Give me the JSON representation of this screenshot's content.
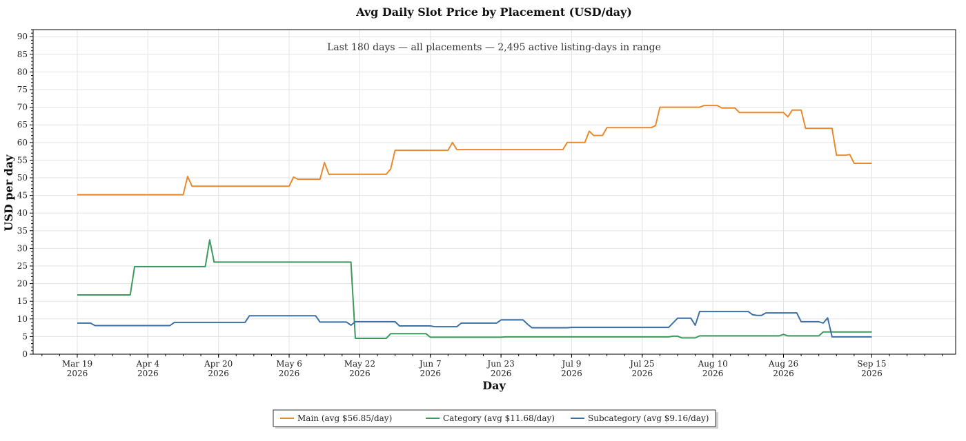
{
  "chart_data": {
    "type": "line",
    "title": "Avg Daily Slot Price by Placement (USD/day)",
    "annotation": "Last 180 days — all placements — 2,495 active listing-days in range",
    "xlabel": "Day",
    "ylabel": "USD per day",
    "x_range": [
      "2026-03-09",
      "2026-10-04"
    ],
    "ylim": [
      0,
      92
    ],
    "y_ticks": [
      0,
      5,
      10,
      15,
      20,
      25,
      30,
      35,
      40,
      45,
      50,
      55,
      60,
      65,
      70,
      75,
      80,
      85,
      90
    ],
    "x_ticks": [
      {
        "date": "2026-03-19",
        "label": [
          "Mar 19",
          "2026"
        ]
      },
      {
        "date": "2026-04-04",
        "label": [
          "Apr 4",
          "2026"
        ]
      },
      {
        "date": "2026-04-20",
        "label": [
          "Apr 20",
          "2026"
        ]
      },
      {
        "date": "2026-05-06",
        "label": [
          "May 6",
          "2026"
        ]
      },
      {
        "date": "2026-05-22",
        "label": [
          "May 22",
          "2026"
        ]
      },
      {
        "date": "2026-06-07",
        "label": [
          "Jun 7",
          "2026"
        ]
      },
      {
        "date": "2026-06-23",
        "label": [
          "Jun 23",
          "2026"
        ]
      },
      {
        "date": "2026-07-09",
        "label": [
          "Jul 9",
          "2026"
        ]
      },
      {
        "date": "2026-07-25",
        "label": [
          "Jul 25",
          "2026"
        ]
      },
      {
        "date": "2026-08-10",
        "label": [
          "Aug 10",
          "2026"
        ]
      },
      {
        "date": "2026-08-26",
        "label": [
          "Aug 26",
          "2026"
        ]
      },
      {
        "date": "2026-09-15",
        "label": [
          "Sep 15",
          "2026"
        ]
      }
    ],
    "grid": true,
    "legend_position": "bottom-center",
    "series": [
      {
        "name": "Main (avg $56.85/day)",
        "color": "#e8892b",
        "points": [
          [
            "2026-03-19",
            45.2
          ],
          [
            "2026-04-12",
            45.2
          ],
          [
            "2026-04-13",
            50.4
          ],
          [
            "2026-04-14",
            47.6
          ],
          [
            "2026-05-06",
            47.6
          ],
          [
            "2026-05-07",
            50.2
          ],
          [
            "2026-05-08",
            49.6
          ],
          [
            "2026-05-13",
            49.6
          ],
          [
            "2026-05-14",
            54.3
          ],
          [
            "2026-05-15",
            51.0
          ],
          [
            "2026-05-28",
            51.0
          ],
          [
            "2026-05-29",
            52.5
          ],
          [
            "2026-05-30",
            57.8
          ],
          [
            "2026-06-11",
            57.8
          ],
          [
            "2026-06-12",
            60.0
          ],
          [
            "2026-06-13",
            58.0
          ],
          [
            "2026-07-07",
            58.0
          ],
          [
            "2026-07-08",
            60.0
          ],
          [
            "2026-07-12",
            60.0
          ],
          [
            "2026-07-13",
            63.2
          ],
          [
            "2026-07-14",
            62.0
          ],
          [
            "2026-07-16",
            62.0
          ],
          [
            "2026-07-17",
            64.2
          ],
          [
            "2026-07-27",
            64.2
          ],
          [
            "2026-07-28",
            64.8
          ],
          [
            "2026-07-29",
            70.0
          ],
          [
            "2026-08-07",
            70.0
          ],
          [
            "2026-08-08",
            70.5
          ],
          [
            "2026-08-11",
            70.5
          ],
          [
            "2026-08-12",
            69.8
          ],
          [
            "2026-08-15",
            69.8
          ],
          [
            "2026-08-16",
            68.5
          ],
          [
            "2026-08-26",
            68.5
          ],
          [
            "2026-08-27",
            67.3
          ],
          [
            "2026-08-28",
            69.2
          ],
          [
            "2026-08-30",
            69.2
          ],
          [
            "2026-08-31",
            64.0
          ],
          [
            "2026-09-06",
            64.0
          ],
          [
            "2026-09-07",
            56.4
          ],
          [
            "2026-09-09",
            56.4
          ],
          [
            "2026-09-10",
            56.6
          ],
          [
            "2026-09-11",
            54.1
          ],
          [
            "2026-09-15",
            54.1
          ]
        ]
      },
      {
        "name": "Category (avg $11.68/day)",
        "color": "#3a9a5b",
        "points": [
          [
            "2026-03-19",
            16.8
          ],
          [
            "2026-03-31",
            16.8
          ],
          [
            "2026-04-01",
            24.8
          ],
          [
            "2026-04-17",
            24.8
          ],
          [
            "2026-04-18",
            32.4
          ],
          [
            "2026-04-19",
            26.1
          ],
          [
            "2026-05-20",
            26.1
          ],
          [
            "2026-05-21",
            4.5
          ],
          [
            "2026-05-28",
            4.5
          ],
          [
            "2026-05-29",
            5.8
          ],
          [
            "2026-06-06",
            5.8
          ],
          [
            "2026-06-07",
            4.8
          ],
          [
            "2026-06-23",
            4.8
          ],
          [
            "2026-06-24",
            4.9
          ],
          [
            "2026-07-31",
            4.9
          ],
          [
            "2026-08-01",
            5.1
          ],
          [
            "2026-08-02",
            5.1
          ],
          [
            "2026-08-03",
            4.6
          ],
          [
            "2026-08-06",
            4.6
          ],
          [
            "2026-08-07",
            5.2
          ],
          [
            "2026-08-25",
            5.2
          ],
          [
            "2026-08-26",
            5.6
          ],
          [
            "2026-08-27",
            5.2
          ],
          [
            "2026-09-03",
            5.2
          ],
          [
            "2026-09-04",
            6.3
          ],
          [
            "2026-09-15",
            6.3
          ]
        ]
      },
      {
        "name": "Subcategory (avg $9.16/day)",
        "color": "#3b6fa6",
        "points": [
          [
            "2026-03-19",
            8.8
          ],
          [
            "2026-03-22",
            8.8
          ],
          [
            "2026-03-23",
            8.1
          ],
          [
            "2026-04-09",
            8.1
          ],
          [
            "2026-04-10",
            9.0
          ],
          [
            "2026-04-26",
            9.0
          ],
          [
            "2026-04-27",
            10.9
          ],
          [
            "2026-05-12",
            10.9
          ],
          [
            "2026-05-13",
            9.1
          ],
          [
            "2026-05-19",
            9.1
          ],
          [
            "2026-05-20",
            8.2
          ],
          [
            "2026-05-21",
            9.2
          ],
          [
            "2026-05-30",
            9.2
          ],
          [
            "2026-05-31",
            8.0
          ],
          [
            "2026-06-07",
            8.0
          ],
          [
            "2026-06-08",
            7.8
          ],
          [
            "2026-06-13",
            7.8
          ],
          [
            "2026-06-14",
            8.8
          ],
          [
            "2026-06-22",
            8.8
          ],
          [
            "2026-06-23",
            9.7
          ],
          [
            "2026-06-28",
            9.7
          ],
          [
            "2026-06-29",
            8.5
          ],
          [
            "2026-06-30",
            7.5
          ],
          [
            "2026-07-08",
            7.5
          ],
          [
            "2026-07-09",
            7.6
          ],
          [
            "2026-07-31",
            7.6
          ],
          [
            "2026-08-02",
            10.2
          ],
          [
            "2026-08-05",
            10.2
          ],
          [
            "2026-08-06",
            8.2
          ],
          [
            "2026-08-07",
            12.1
          ],
          [
            "2026-08-18",
            12.1
          ],
          [
            "2026-08-19",
            11.2
          ],
          [
            "2026-08-20",
            11.0
          ],
          [
            "2026-08-21",
            11.0
          ],
          [
            "2026-08-22",
            11.7
          ],
          [
            "2026-08-29",
            11.7
          ],
          [
            "2026-08-30",
            9.2
          ],
          [
            "2026-09-03",
            9.2
          ],
          [
            "2026-09-04",
            8.8
          ],
          [
            "2026-09-05",
            10.3
          ],
          [
            "2026-09-06",
            4.9
          ],
          [
            "2026-09-15",
            4.9
          ]
        ]
      }
    ]
  }
}
